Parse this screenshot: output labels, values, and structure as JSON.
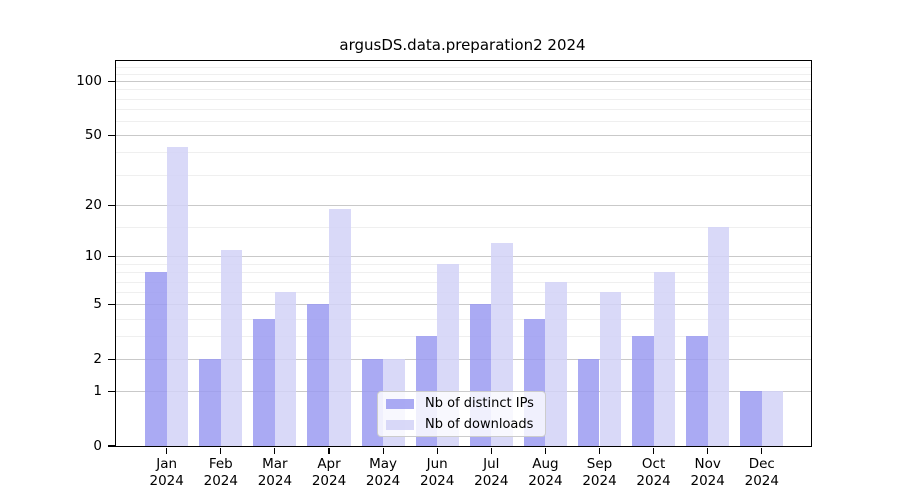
{
  "title": "argusDS.data.preparation2 2024",
  "legend": {
    "items": [
      {
        "label": "Nb of distinct IPs",
        "color": "rgba(155,155,241,0.85)"
      },
      {
        "label": "Nb of downloads",
        "color": "rgba(210,210,247,0.85)"
      }
    ]
  },
  "chart_data": {
    "type": "bar",
    "title": "argusDS.data.preparation2 2024",
    "categories": [
      {
        "line1": "Jan",
        "line2": "2024"
      },
      {
        "line1": "Feb",
        "line2": "2024"
      },
      {
        "line1": "Mar",
        "line2": "2024"
      },
      {
        "line1": "Apr",
        "line2": "2024"
      },
      {
        "line1": "May",
        "line2": "2024"
      },
      {
        "line1": "Jun",
        "line2": "2024"
      },
      {
        "line1": "Jul",
        "line2": "2024"
      },
      {
        "line1": "Aug",
        "line2": "2024"
      },
      {
        "line1": "Sep",
        "line2": "2024"
      },
      {
        "line1": "Oct",
        "line2": "2024"
      },
      {
        "line1": "Nov",
        "line2": "2024"
      },
      {
        "line1": "Dec",
        "line2": "2024"
      }
    ],
    "series": [
      {
        "name": "Nb of distinct IPs",
        "color": "rgba(155,155,241,0.85)",
        "values": [
          8,
          2,
          4,
          5,
          2,
          3,
          5,
          4,
          2,
          3,
          3,
          1
        ]
      },
      {
        "name": "Nb of downloads",
        "color": "rgba(210,210,247,0.85)",
        "values": [
          43,
          11,
          6,
          19,
          2,
          9,
          12,
          7,
          6,
          8,
          15,
          1
        ]
      }
    ],
    "xlabel": "",
    "ylabel": "",
    "yscale": "log(1+y)",
    "ylim": [
      0,
      129
    ],
    "yticks": [
      100,
      50,
      20,
      10,
      5,
      2,
      1,
      0
    ],
    "ytick_labels": [
      "100",
      "50",
      "20",
      "10",
      "5",
      "2",
      "1",
      "0"
    ],
    "yticks_minor": [
      3,
      4,
      6,
      7,
      8,
      9,
      15,
      30,
      40,
      60,
      70,
      80,
      90,
      110,
      120
    ],
    "grid": true,
    "grid_major_color": "#c9c9c9",
    "grid_minor_color": "#efefef",
    "legend_position": "lower center"
  }
}
